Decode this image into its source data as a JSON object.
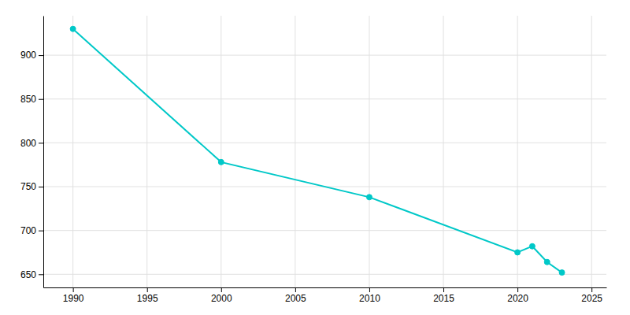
{
  "chart_data": {
    "type": "line",
    "x": [
      1990,
      2000,
      2010,
      2020,
      2021,
      2022,
      2023
    ],
    "values": [
      930,
      778,
      738,
      675,
      682,
      664,
      652
    ],
    "color": "#00C8C8",
    "marker": "circle",
    "xlim": [
      1988,
      2026
    ],
    "ylim": [
      635,
      945
    ],
    "xticks": [
      1990,
      1995,
      2000,
      2005,
      2010,
      2015,
      2020,
      2025
    ],
    "yticks": [
      650,
      700,
      750,
      800,
      850,
      900
    ],
    "grid": true
  }
}
